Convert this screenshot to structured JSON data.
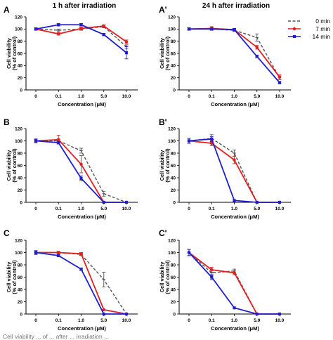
{
  "figure": {
    "column_titles": [
      "1 h after irradiation",
      "24 h after irradiation"
    ],
    "legend": [
      {
        "name": "0 min",
        "color": "#555555",
        "style": "dashed",
        "marker": "cap"
      },
      {
        "name": "7 min",
        "color": "#e02020",
        "style": "solid",
        "marker": "circle"
      },
      {
        "name": "14 min",
        "color": "#1f1fd0",
        "style": "solid",
        "marker": "square"
      }
    ],
    "footer_text": "Cell viability ... of ... after ... irradiation ..."
  },
  "chart_data": [
    {
      "panel": "A",
      "type": "line",
      "title": "1 h after irradiation",
      "xlabel": "Concentration (μM)",
      "ylabel": [
        "Cell viability",
        "(% of control)"
      ],
      "categories": [
        "0",
        "0.1",
        "1.0",
        "5.0",
        "10.0"
      ],
      "ylim": [
        0,
        120
      ],
      "yticks": [
        "0",
        "20",
        "40",
        "60",
        "80",
        "100",
        "120"
      ],
      "series": [
        {
          "name": "0 min",
          "values": [
            100,
            98,
            100,
            104,
            71
          ],
          "errors": [
            2,
            2,
            2,
            2,
            3
          ]
        },
        {
          "name": "7 min",
          "values": [
            100,
            92,
            101,
            105,
            79
          ],
          "errors": [
            2,
            2,
            2,
            2,
            3
          ]
        },
        {
          "name": "14 min",
          "values": [
            100,
            107,
            107,
            91,
            61
          ],
          "errors": [
            2,
            2,
            2,
            2,
            10
          ]
        }
      ]
    },
    {
      "panel": "A'",
      "type": "line",
      "title": "24 h after irradiation",
      "xlabel": "Concentration (μM)",
      "ylabel": [
        "Cell viability",
        "(% of control)"
      ],
      "categories": [
        "0",
        "0.1",
        "1.0",
        "5.0",
        "10.0"
      ],
      "ylim": [
        0,
        120
      ],
      "yticks": [
        "0",
        "20",
        "40",
        "60",
        "80",
        "100",
        "120"
      ],
      "series": [
        {
          "name": "0 min",
          "values": [
            100,
            100,
            98,
            86,
            20
          ],
          "errors": [
            2,
            2,
            2,
            6,
            3
          ]
        },
        {
          "name": "7 min",
          "values": [
            100,
            101,
            99,
            70,
            21
          ],
          "errors": [
            2,
            3,
            2,
            3,
            4
          ]
        },
        {
          "name": "14 min",
          "values": [
            100,
            100,
            99,
            55,
            12
          ],
          "errors": [
            2,
            2,
            2,
            2,
            2
          ]
        }
      ]
    },
    {
      "panel": "B",
      "type": "line",
      "xlabel": "Concentration (μM)",
      "ylabel": [
        "Cell viability",
        "(% of control)"
      ],
      "categories": [
        "0",
        "0.1",
        "1.0",
        "5.0",
        "10.0"
      ],
      "ylim": [
        0,
        120
      ],
      "yticks": [
        "0",
        "20",
        "40",
        "60",
        "80",
        "100",
        "120"
      ],
      "series": [
        {
          "name": "0 min",
          "values": [
            100,
            100,
            84,
            14,
            0
          ],
          "errors": [
            3,
            3,
            4,
            4,
            0
          ]
        },
        {
          "name": "7 min",
          "values": [
            100,
            102,
            62,
            0,
            0
          ],
          "errors": [
            3,
            7,
            14,
            0,
            0
          ]
        },
        {
          "name": "14 min",
          "values": [
            100,
            97,
            39,
            0,
            0
          ],
          "errors": [
            3,
            2,
            4,
            0,
            0
          ]
        }
      ]
    },
    {
      "panel": "B'",
      "type": "line",
      "xlabel": "Concentration (μM)",
      "ylabel": [
        "Cell viability",
        "(% of control)"
      ],
      "categories": [
        "0",
        "0.1",
        "1.0",
        "5.0",
        "10.0"
      ],
      "ylim": [
        0,
        120
      ],
      "yticks": [
        "0",
        "20",
        "40",
        "60",
        "80",
        "100",
        "120"
      ],
      "series": [
        {
          "name": "0 min",
          "values": [
            100,
            104,
            80,
            0,
            0
          ],
          "errors": [
            4,
            6,
            5,
            0,
            0
          ]
        },
        {
          "name": "7 min",
          "values": [
            100,
            96,
            69,
            0,
            0
          ],
          "errors": [
            4,
            4,
            6,
            0,
            0
          ]
        },
        {
          "name": "14 min",
          "values": [
            100,
            103,
            3,
            0,
            0
          ],
          "errors": [
            4,
            4,
            0,
            0,
            0
          ]
        }
      ]
    },
    {
      "panel": "C",
      "type": "line",
      "xlabel": "Concentration (μM)",
      "ylabel": [
        "Cell viability",
        "(% of control)"
      ],
      "categories": [
        "0",
        "0.1",
        "1.0",
        "5.0",
        "10.0"
      ],
      "ylim": [
        0,
        120
      ],
      "yticks": [
        "0",
        "20",
        "40",
        "60",
        "80",
        "100",
        "120"
      ],
      "series": [
        {
          "name": "0 min",
          "values": [
            100,
            100,
            97,
            56,
            0
          ],
          "errors": [
            3,
            2,
            2,
            12,
            0
          ]
        },
        {
          "name": "7 min",
          "values": [
            100,
            100,
            98,
            7,
            0
          ],
          "errors": [
            3,
            2,
            2,
            0,
            0
          ]
        },
        {
          "name": "14 min",
          "values": [
            100,
            95,
            73,
            0,
            0
          ],
          "errors": [
            3,
            2,
            2,
            0,
            0
          ]
        }
      ]
    },
    {
      "panel": "C'",
      "type": "line",
      "xlabel": "Concentration (μM)",
      "ylabel": [
        "Cell viability",
        "(% of control)"
      ],
      "categories": [
        "0",
        "0.1",
        "1.0",
        "5.0",
        "10.0"
      ],
      "ylim": [
        0,
        120
      ],
      "yticks": [
        "0",
        "20",
        "40",
        "60",
        "80",
        "100",
        "120"
      ],
      "series": [
        {
          "name": "0 min",
          "values": [
            100,
            67,
            70,
            0,
            0
          ],
          "errors": [
            5,
            4,
            3,
            0,
            0
          ]
        },
        {
          "name": "7 min",
          "values": [
            100,
            72,
            67,
            0,
            0
          ],
          "errors": [
            5,
            4,
            3,
            0,
            0
          ]
        },
        {
          "name": "14 min",
          "values": [
            100,
            60,
            10,
            0,
            0
          ],
          "errors": [
            5,
            4,
            0,
            0,
            0
          ]
        }
      ]
    }
  ]
}
